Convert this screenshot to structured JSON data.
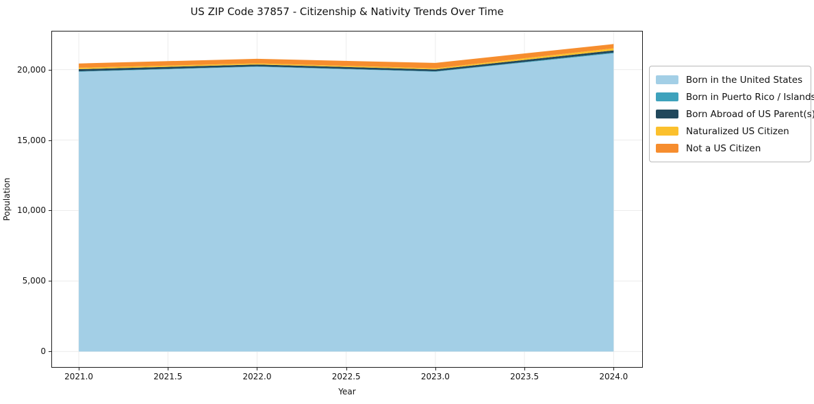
{
  "chart_data": {
    "type": "area",
    "stacked": true,
    "title": "US ZIP Code 37857 - Citizenship & Nativity Trends Over Time",
    "xlabel": "Year",
    "ylabel": "Population",
    "x": [
      2021,
      2022,
      2023,
      2024
    ],
    "series": [
      {
        "name": "Born in the United States",
        "color": "#a3cfe6",
        "values": [
          19850,
          20200,
          19850,
          21150
        ]
      },
      {
        "name": "Born in Puerto Rico / Islands",
        "color": "#3ea2bc",
        "values": [
          30,
          30,
          30,
          60
        ]
      },
      {
        "name": "Born Abroad of US Parent(s)",
        "color": "#21485c",
        "values": [
          150,
          130,
          130,
          150
        ]
      },
      {
        "name": "Naturalized US Citizen",
        "color": "#fbc02d",
        "values": [
          100,
          80,
          80,
          150
        ]
      },
      {
        "name": "Not a US Citizen",
        "color": "#f68d2e",
        "values": [
          300,
          320,
          380,
          300
        ]
      }
    ],
    "xlim": [
      2020.85,
      2024.16
    ],
    "ylim": [
      -1100,
      22700
    ],
    "xticks": {
      "values": [
        2021.0,
        2021.5,
        2022.0,
        2022.5,
        2023.0,
        2023.5,
        2024.0
      ],
      "labels": [
        "2021.0",
        "2021.5",
        "2022.0",
        "2022.5",
        "2023.0",
        "2023.5",
        "2024.0"
      ]
    },
    "yticks": {
      "values": [
        0,
        5000,
        10000,
        15000,
        20000
      ],
      "labels": [
        "0",
        "5,000",
        "10,000",
        "15,000",
        "20,000"
      ]
    },
    "grid": true,
    "grid_color": "#ececec",
    "legend_position": "right"
  }
}
